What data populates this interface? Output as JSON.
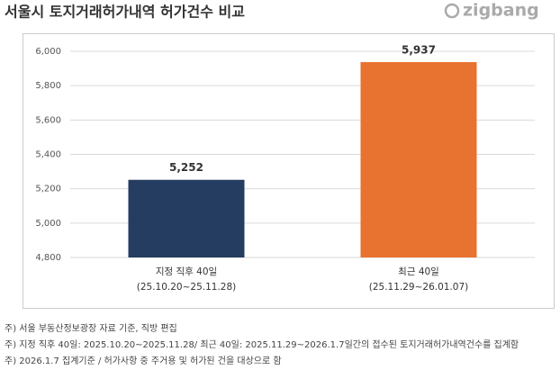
{
  "chart_data": {
    "type": "bar",
    "title": "서울시 토지거래허가내역 허가건수 비교",
    "brand": "zigbang",
    "categories": [
      "지정 직후 40일",
      "최근 40일"
    ],
    "category_periods": [
      "(25.10.20~25.11.28)",
      "(25.11.29~26.01.07)"
    ],
    "values": [
      5252,
      5937
    ],
    "value_labels": [
      "5,252",
      "5,937"
    ],
    "colors": [
      "#253d60",
      "#e8722f"
    ],
    "ylim": [
      4800,
      6000
    ],
    "yticks": [
      {
        "value": 4800,
        "label": "4,800"
      },
      {
        "value": 5000,
        "label": "5,000"
      },
      {
        "value": 5200,
        "label": "5,200"
      },
      {
        "value": 5400,
        "label": "5,400"
      },
      {
        "value": 5600,
        "label": "5,600"
      },
      {
        "value": 5800,
        "label": "5,800"
      },
      {
        "value": 6000,
        "label": "6,000"
      }
    ],
    "grid": true,
    "notes": [
      "주) 서울 부동산정보광장 자료 기준, 직방 편집",
      "주) 지정 직후 40일: 2025.10.20~2025.11.28/ 최근 40일: 2025.11.29~2026.1.7일간의  접수된 토지거래허가내역건수를 집계함",
      "주) 2026.1.7 집계기준 / 허가사항 중 주거용 및 허가된 건을 대상으로 함"
    ]
  }
}
